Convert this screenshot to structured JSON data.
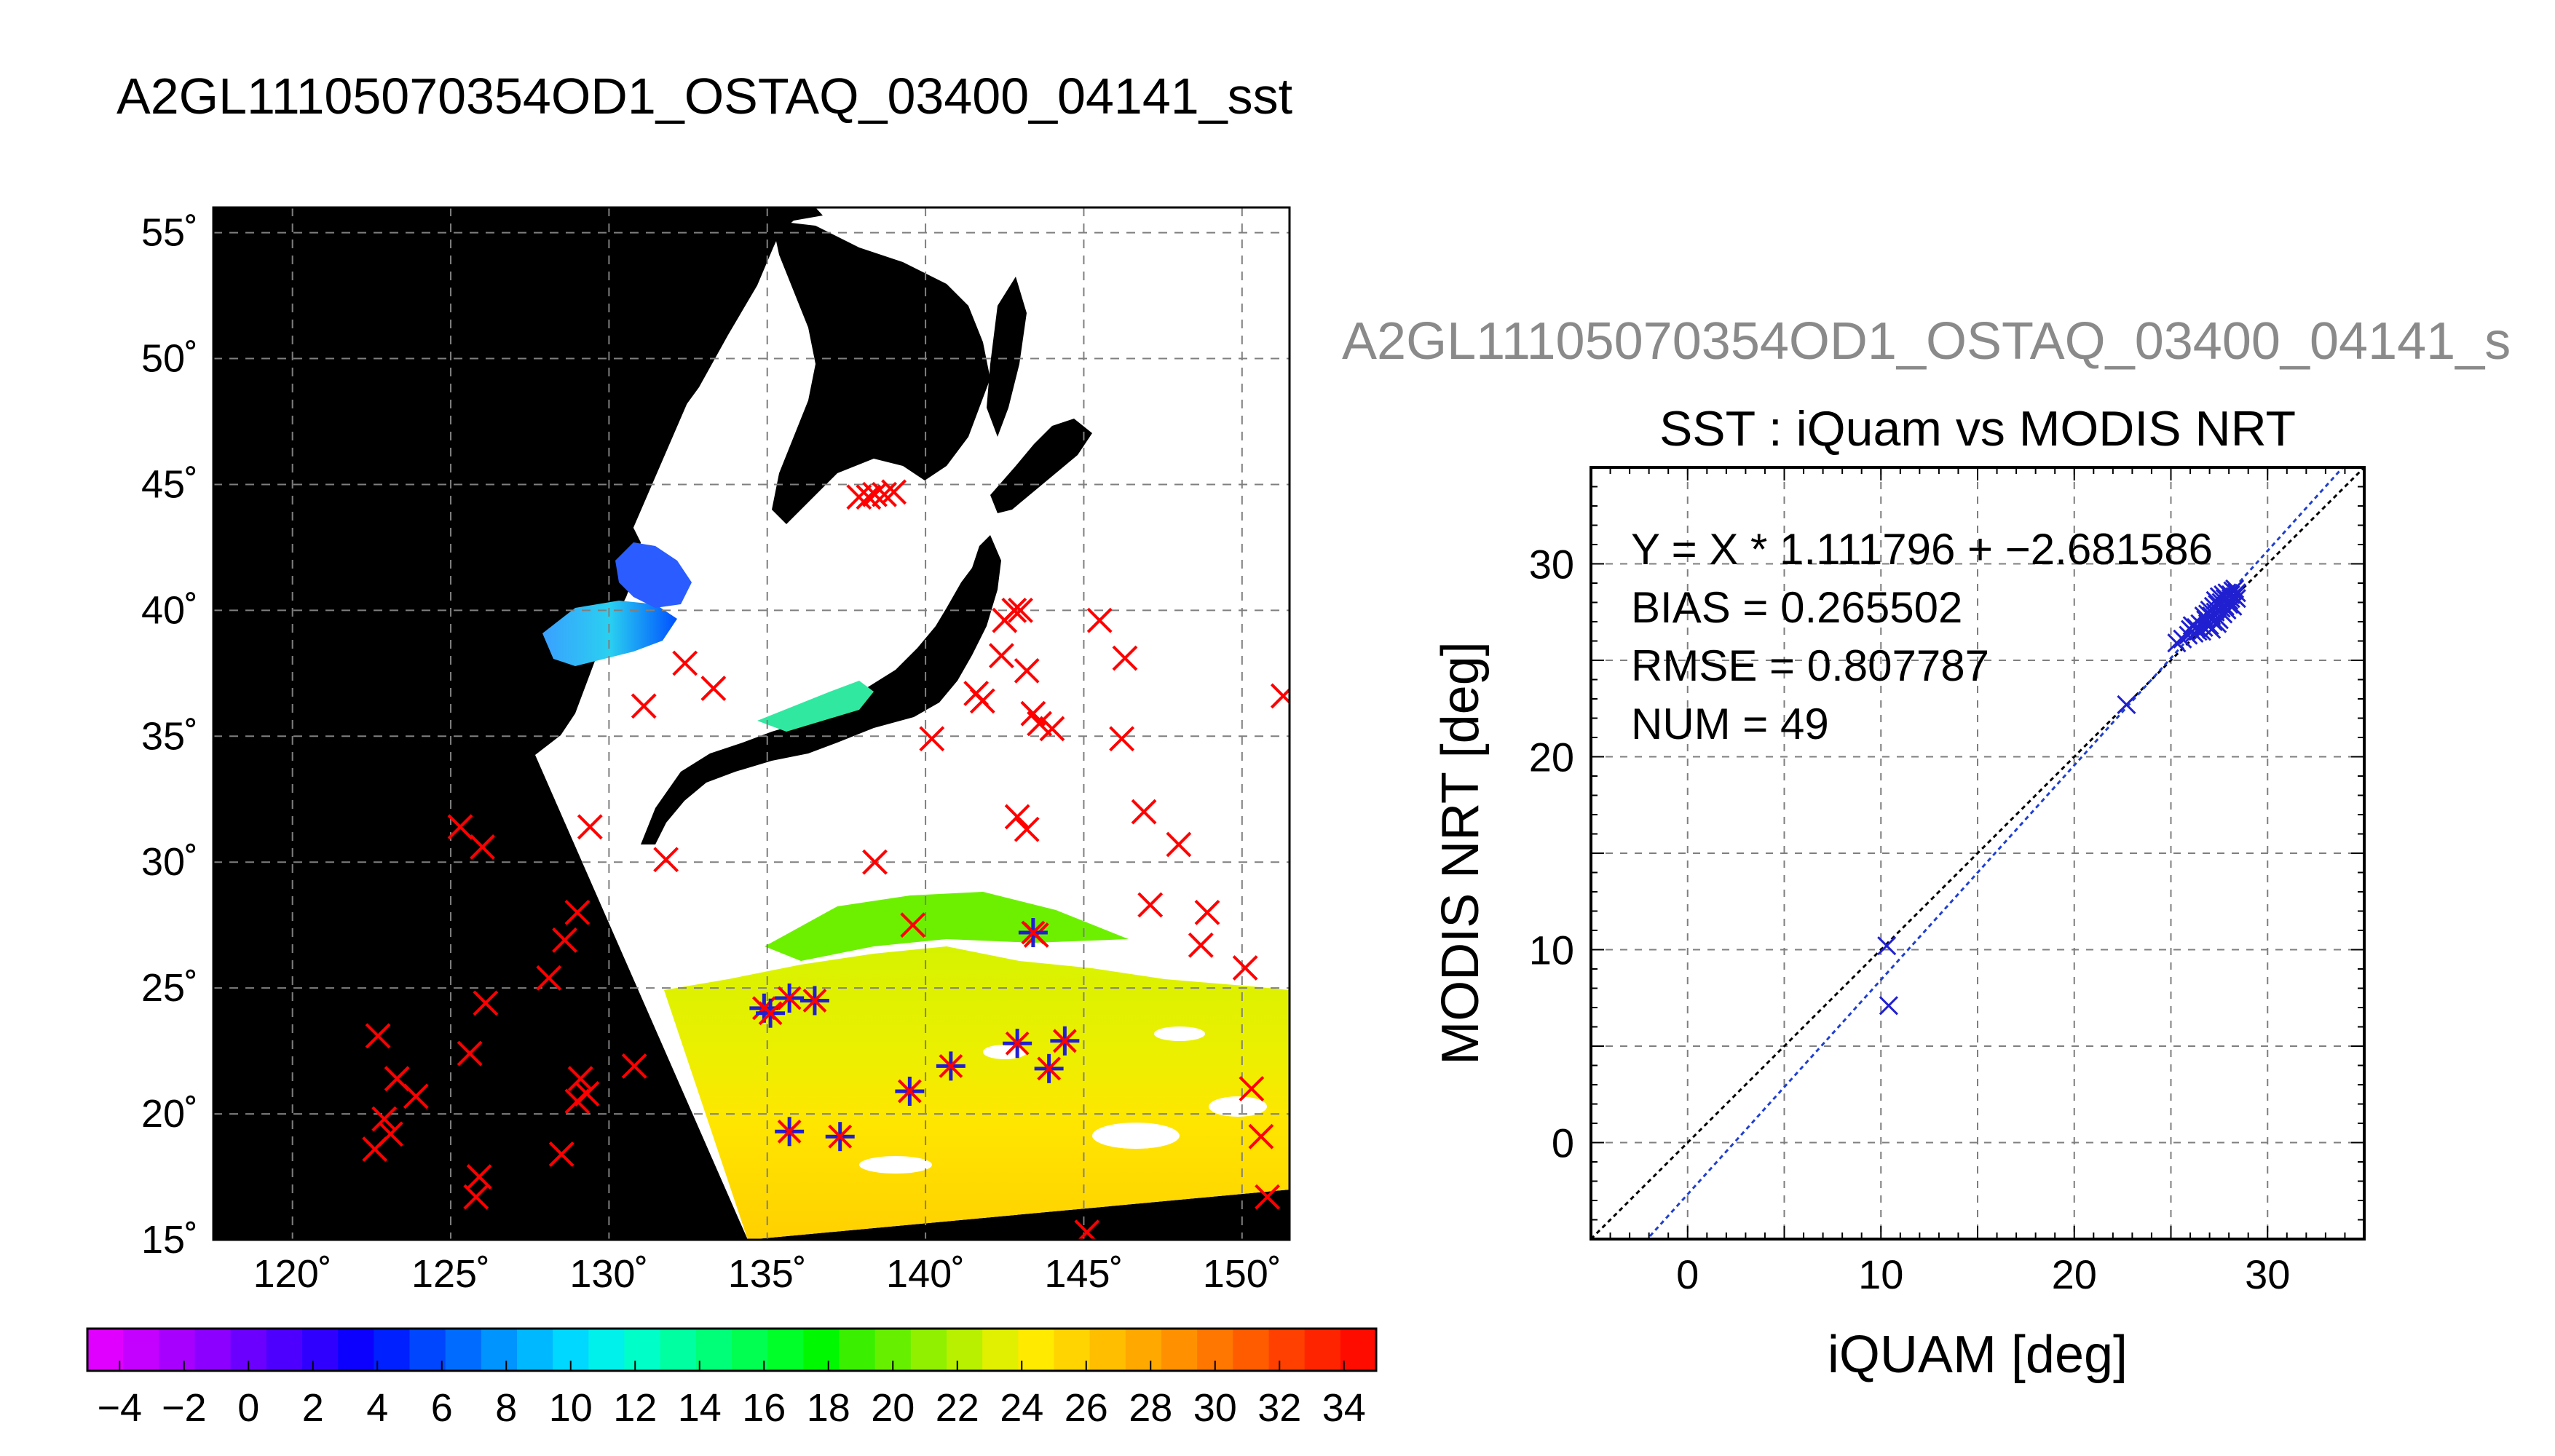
{
  "main_title": "A2GL11105070354OD1_OSTAQ_03400_04141_sst",
  "second_title": "A2GL11105070354OD1_OSTAQ_03400_04141_s",
  "colors": {
    "land": "#000000",
    "cloud": "#ffffff",
    "grid": "#7f7f7f",
    "ship_marker": "#ff0000",
    "buoy_marker": "#2020d0",
    "fit_line": "#1f3fd0",
    "identity_line": "#000000"
  },
  "chart_data": [
    {
      "type": "map",
      "x_ticks": [
        "120˚",
        "125˚",
        "130˚",
        "135˚",
        "140˚",
        "145˚",
        "150˚"
      ],
      "y_ticks": [
        "15˚",
        "20˚",
        "25˚",
        "30˚",
        "35˚",
        "40˚",
        "45˚",
        "50˚",
        "55˚"
      ],
      "xlim": [
        117.5,
        151.5
      ],
      "ylim": [
        15,
        56
      ],
      "grid": true,
      "field": "sst",
      "colorbar": {
        "ticks": [
          "−4",
          "−2",
          "0",
          "2",
          "4",
          "6",
          "8",
          "10",
          "12",
          "14",
          "16",
          "18",
          "20",
          "22",
          "24",
          "26",
          "28",
          "30",
          "32",
          "34"
        ],
        "range": [
          -5,
          35
        ],
        "colors": [
          "#e000ff",
          "#c400ff",
          "#a800ff",
          "#8c00ff",
          "#6c00ff",
          "#4e00ff",
          "#3000ff",
          "#0c00ff",
          "#0020ff",
          "#0046ff",
          "#006cff",
          "#0094ff",
          "#00b8ff",
          "#00d8ff",
          "#00f0ec",
          "#00ffc8",
          "#00ffa0",
          "#00ff78",
          "#00ff50",
          "#00ff28",
          "#00f800",
          "#3af000",
          "#66f000",
          "#90f000",
          "#b8f000",
          "#e0f000",
          "#ffea00",
          "#ffd400",
          "#ffbe00",
          "#ffa800",
          "#ff9000",
          "#ff7600",
          "#ff5c00",
          "#ff4000",
          "#ff2400",
          "#ff0c00"
        ]
      },
      "matchups": {
        "red_x": [
          [
            122.7,
            23.1
          ],
          [
            123.3,
            21.4
          ],
          [
            123.9,
            20.7
          ],
          [
            122.9,
            19.8
          ],
          [
            123.1,
            19.2
          ],
          [
            122.6,
            18.6
          ],
          [
            125.3,
            31.4
          ],
          [
            126.0,
            30.6
          ],
          [
            126.1,
            24.4
          ],
          [
            125.6,
            22.4
          ],
          [
            125.9,
            17.5
          ],
          [
            125.8,
            16.7
          ],
          [
            128.1,
            25.4
          ],
          [
            128.6,
            26.9
          ],
          [
            129.0,
            28.0
          ],
          [
            128.5,
            18.4
          ],
          [
            129.1,
            21.4
          ],
          [
            129.3,
            20.8
          ],
          [
            129.0,
            20.5
          ],
          [
            129.4,
            31.4
          ],
          [
            130.8,
            21.9
          ],
          [
            131.1,
            36.2
          ],
          [
            131.8,
            30.1
          ],
          [
            132.4,
            37.9
          ],
          [
            133.3,
            36.9
          ],
          [
            137.9,
            44.5
          ],
          [
            138.2,
            44.5
          ],
          [
            138.4,
            44.6
          ],
          [
            138.7,
            44.6
          ],
          [
            139.0,
            44.7
          ],
          [
            138.4,
            30.0
          ],
          [
            139.6,
            27.5
          ],
          [
            140.2,
            34.9
          ],
          [
            141.6,
            36.7
          ],
          [
            141.8,
            36.4
          ],
          [
            142.4,
            38.2
          ],
          [
            142.5,
            39.6
          ],
          [
            143.0,
            40.0
          ],
          [
            143.2,
            37.6
          ],
          [
            143.4,
            35.9
          ],
          [
            143.6,
            35.5
          ],
          [
            144.0,
            35.3
          ],
          [
            142.9,
            31.8
          ],
          [
            143.2,
            31.3
          ],
          [
            143.5,
            27.1
          ],
          [
            145.5,
            39.6
          ],
          [
            146.3,
            38.1
          ],
          [
            146.2,
            34.9
          ],
          [
            146.9,
            32.0
          ],
          [
            148.0,
            30.7
          ],
          [
            147.1,
            28.3
          ],
          [
            148.9,
            28.0
          ],
          [
            148.7,
            26.7
          ],
          [
            150.1,
            25.8
          ],
          [
            150.3,
            21.0
          ],
          [
            150.6,
            19.1
          ],
          [
            150.8,
            16.7
          ],
          [
            151.3,
            36.6
          ],
          [
            145.1,
            15.3
          ],
          [
            142.8,
            40.0
          ]
        ],
        "blue_star": [
          [
            134.9,
            24.2
          ],
          [
            135.1,
            24.0
          ],
          [
            135.7,
            24.6
          ],
          [
            136.5,
            24.5
          ],
          [
            135.7,
            19.3
          ],
          [
            137.3,
            19.1
          ],
          [
            139.5,
            20.9
          ],
          [
            140.8,
            21.9
          ],
          [
            142.9,
            22.8
          ],
          [
            143.4,
            27.2
          ],
          [
            143.9,
            21.8
          ],
          [
            144.4,
            22.9
          ]
        ]
      }
    },
    {
      "type": "scatter",
      "title": "SST : iQuam vs MODIS NRT",
      "xlabel": "iQUAM [deg]",
      "ylabel": "MODIS NRT [deg]",
      "xlim": [
        -5,
        35
      ],
      "ylim": [
        -5,
        35
      ],
      "x_ticks": [
        "0",
        "10",
        "20",
        "30"
      ],
      "y_ticks": [
        "0",
        "10",
        "20",
        "30"
      ],
      "grid": true,
      "stats": [
        "Y = X * 1.111796 + −2.681586",
        "BIAS = 0.265502",
        "RMSE = 0.807787",
        "NUM = 49"
      ],
      "fit": {
        "slope": 1.111796,
        "intercept": -2.681586
      },
      "points": [
        [
          10.3,
          10.2
        ],
        [
          10.4,
          7.1
        ],
        [
          22.7,
          22.7
        ],
        [
          25.3,
          25.9
        ],
        [
          25.6,
          26.1
        ],
        [
          25.9,
          26.3
        ],
        [
          26.0,
          26.6
        ],
        [
          26.1,
          26.8
        ],
        [
          26.2,
          26.4
        ],
        [
          26.3,
          26.7
        ],
        [
          26.4,
          26.5
        ],
        [
          26.5,
          26.9
        ],
        [
          26.6,
          26.5
        ],
        [
          26.7,
          26.7
        ],
        [
          26.8,
          27.1
        ],
        [
          26.9,
          26.9
        ],
        [
          26.9,
          27.4
        ],
        [
          27.0,
          27.6
        ],
        [
          27.0,
          26.8
        ],
        [
          27.1,
          27.3
        ],
        [
          27.2,
          27.0
        ],
        [
          27.2,
          27.8
        ],
        [
          27.3,
          28.1
        ],
        [
          27.3,
          27.5
        ],
        [
          27.4,
          27.2
        ],
        [
          27.4,
          27.9
        ],
        [
          27.5,
          28.3
        ],
        [
          27.5,
          27.1
        ],
        [
          27.6,
          27.7
        ],
        [
          27.6,
          28.0
        ],
        [
          27.7,
          27.4
        ],
        [
          27.7,
          28.4
        ],
        [
          27.8,
          27.8
        ],
        [
          27.8,
          28.2
        ],
        [
          27.9,
          27.6
        ],
        [
          27.9,
          28.5
        ],
        [
          28.0,
          28.1
        ],
        [
          28.0,
          27.9
        ],
        [
          28.1,
          28.4
        ],
        [
          28.1,
          28.2
        ],
        [
          28.2,
          28.6
        ],
        [
          28.2,
          27.8
        ],
        [
          28.3,
          28.3
        ],
        [
          28.3,
          28.7
        ],
        [
          28.4,
          28.5
        ],
        [
          27.1,
          26.6
        ],
        [
          26.7,
          27.3
        ],
        [
          27.4,
          26.9
        ],
        [
          28.4,
          28.2
        ]
      ]
    }
  ]
}
